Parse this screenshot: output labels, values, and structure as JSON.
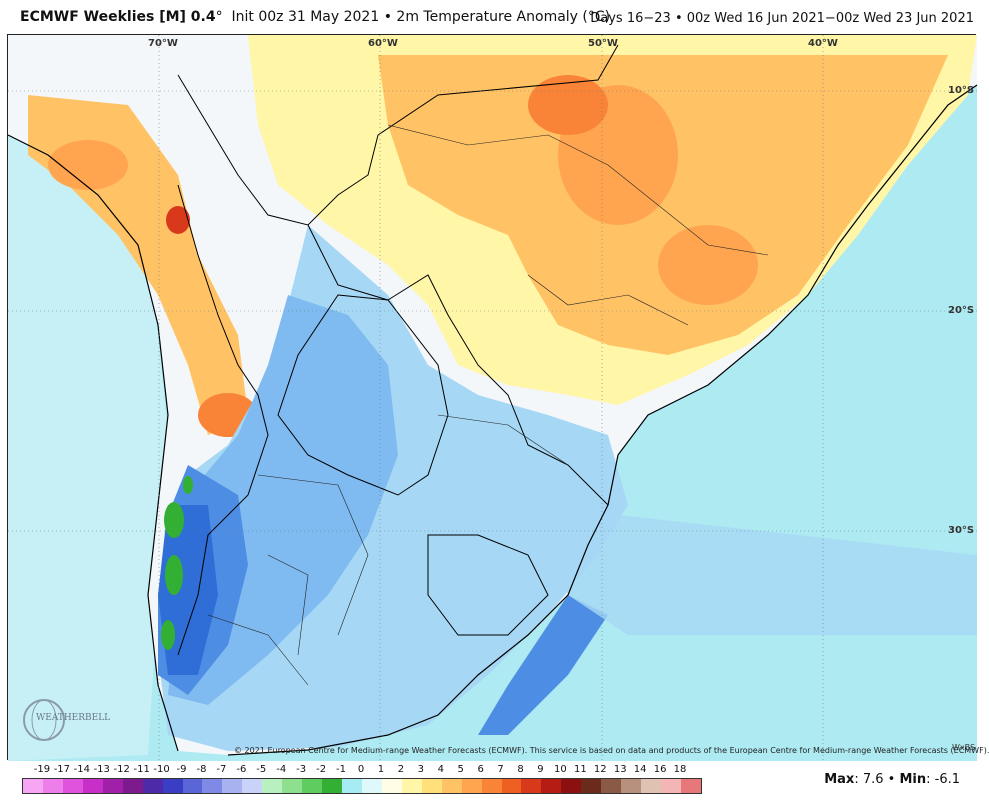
{
  "header": {
    "model": "ECMWF Weeklies [M] 0.4",
    "degree": "°",
    "init": "Init 00z 31 May 2021",
    "separator": "•",
    "variable": "2m Temperature Anomaly (°C)",
    "valid": "Days 16−23 • 00z Wed 16 Jun 2021−00z Wed 23 Jun 2021"
  },
  "map": {
    "longitude_labels": [
      "70°W",
      "60°W",
      "50°W",
      "40°W"
    ],
    "latitude_labels": [
      "10°S",
      "20°S",
      "30°S"
    ],
    "copyright": "© 2021 European Centre for Medium-range Weather Forecasts (ECMWF). This service is based on data and products of the European Centre for Medium-range Weather Forecasts (ECMWF).",
    "logo_text": "WEATHERBELL",
    "corner_mark": "WxBS"
  },
  "colorbar": {
    "ticks": [
      "-19",
      "-17",
      "-14",
      "-13",
      "-12",
      "-11",
      "-10",
      "-9",
      "-8",
      "-7",
      "-6",
      "-5",
      "-4",
      "-3",
      "-2",
      "-1",
      "0",
      "1",
      "2",
      "3",
      "4",
      "5",
      "6",
      "7",
      "8",
      "9",
      "10",
      "11",
      "12",
      "13",
      "14",
      "16",
      "18"
    ],
    "colors": [
      "#f7a6f3",
      "#ee7ee9",
      "#e053dc",
      "#c82ec8",
      "#a020a8",
      "#7c1a8e",
      "#4c2aa8",
      "#3a3ec4",
      "#5a66d8",
      "#7f8ae6",
      "#a8b2f0",
      "#c9d2f8",
      "#b9f0c0",
      "#8ee08e",
      "#5fcc5f",
      "#33b033",
      "#a6ecf2",
      "#dff8fa",
      "#fffde6",
      "#fff6a8",
      "#ffe07a",
      "#ffc366",
      "#ffa54f",
      "#f98437",
      "#ee5f22",
      "#d8391a",
      "#b41c14",
      "#8c1010",
      "#6a2a1c",
      "#8a5a46",
      "#b8907e",
      "#e0c2b2",
      "#f3b5b5",
      "#e8777a"
    ],
    "max_label": "Max",
    "max_value": "7.6",
    "min_label": "Min",
    "min_value": "-6.1"
  }
}
